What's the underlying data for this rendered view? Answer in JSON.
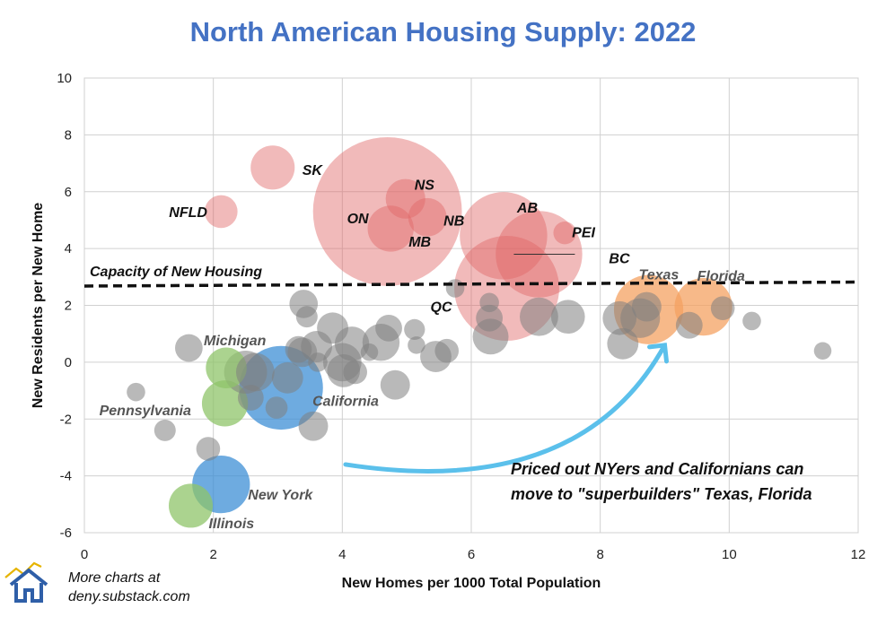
{
  "chart_data": {
    "type": "scatter",
    "title": "North American Housing Supply: 2022",
    "xlabel": "New Homes per 1000 Total Population",
    "ylabel": "New Residents per New Home",
    "xlim": [
      0,
      12
    ],
    "ylim": [
      -6,
      10
    ],
    "xticks": [
      0,
      2,
      4,
      6,
      8,
      10,
      12
    ],
    "yticks": [
      -6,
      -4,
      -2,
      0,
      2,
      4,
      6,
      8,
      10
    ],
    "grid": true,
    "colors": {
      "canada": "#e06666",
      "canada_alpha": 0.45,
      "gray": "#808080",
      "green": "#8fc46a",
      "blue": "#3d8fd6",
      "orange": "#f4a261",
      "arrow": "#5bc0eb",
      "title": "#4472c4"
    },
    "canada": [
      {
        "label": "ON",
        "x": 4.7,
        "y": 5.3,
        "size": 14.0
      },
      {
        "label": "QC",
        "x": 6.55,
        "y": 2.6,
        "size": 6.5
      },
      {
        "label": "AB",
        "x": 6.5,
        "y": 4.45,
        "size": 4.3
      },
      {
        "label": "BC",
        "x": 7.05,
        "y": 3.8,
        "size": 4.2
      },
      {
        "label": "SK",
        "x": 2.92,
        "y": 6.85,
        "size": 0.8
      },
      {
        "label": "NFLD",
        "x": 2.12,
        "y": 5.3,
        "size": 0.35
      },
      {
        "label": "NS",
        "x": 4.98,
        "y": 5.75,
        "size": 0.6
      },
      {
        "label": "NB",
        "x": 5.32,
        "y": 5.1,
        "size": 0.55
      },
      {
        "label": "MB",
        "x": 4.75,
        "y": 4.7,
        "size": 0.9
      },
      {
        "label": "PEI",
        "x": 7.45,
        "y": 4.55,
        "size": 0.1
      }
    ],
    "states_labeled": [
      {
        "label": "California",
        "x": 3.05,
        "y": -0.9,
        "size": 3.9,
        "group": "blue"
      },
      {
        "label": "New York",
        "x": 2.12,
        "y": -4.3,
        "size": 1.6,
        "group": "blue"
      },
      {
        "label": "Michigan",
        "x": 2.2,
        "y": -0.2,
        "size": 0.65,
        "group": "green"
      },
      {
        "label": "Pennsylvania",
        "x": 2.18,
        "y": -1.45,
        "size": 0.9,
        "group": "green"
      },
      {
        "label": "Illinois",
        "x": 1.65,
        "y": -5.05,
        "size": 0.8,
        "group": "green"
      },
      {
        "label": "Texas",
        "x": 8.75,
        "y": 1.85,
        "size": 2.5,
        "group": "orange"
      },
      {
        "label": "Florida",
        "x": 9.6,
        "y": 1.95,
        "size": 1.6,
        "group": "orange"
      }
    ],
    "states_other": [
      {
        "x": 0.8,
        "y": -1.05,
        "size": 0.04
      },
      {
        "x": 1.25,
        "y": -2.4,
        "size": 0.08
      },
      {
        "x": 1.62,
        "y": 0.5,
        "size": 0.2
      },
      {
        "x": 1.92,
        "y": -3.05,
        "size": 0.12
      },
      {
        "x": 2.5,
        "y": -0.35,
        "size": 0.75
      },
      {
        "x": 2.65,
        "y": -0.35,
        "size": 0.55
      },
      {
        "x": 2.58,
        "y": -1.25,
        "size": 0.16
      },
      {
        "x": 2.98,
        "y": -1.6,
        "size": 0.09
      },
      {
        "x": 3.15,
        "y": -0.55,
        "size": 0.3
      },
      {
        "x": 3.4,
        "y": 2.05,
        "size": 0.22
      },
      {
        "x": 3.45,
        "y": 1.6,
        "size": 0.08
      },
      {
        "x": 3.38,
        "y": 0.35,
        "size": 0.25
      },
      {
        "x": 3.55,
        "y": -2.25,
        "size": 0.25
      },
      {
        "x": 3.6,
        "y": 0.55,
        "size": 0.3
      },
      {
        "x": 3.62,
        "y": 0.0,
        "size": 0.05
      },
      {
        "x": 3.32,
        "y": 0.45,
        "size": 0.18
      },
      {
        "x": 3.85,
        "y": 1.2,
        "size": 0.3
      },
      {
        "x": 4.0,
        "y": 0.0,
        "size": 0.55
      },
      {
        "x": 4.02,
        "y": -0.3,
        "size": 0.35
      },
      {
        "x": 4.15,
        "y": 0.65,
        "size": 0.4
      },
      {
        "x": 4.2,
        "y": -0.35,
        "size": 0.12
      },
      {
        "x": 4.42,
        "y": 0.35,
        "size": 0.03
      },
      {
        "x": 4.6,
        "y": 0.7,
        "size": 0.5
      },
      {
        "x": 4.72,
        "y": 1.2,
        "size": 0.18
      },
      {
        "x": 4.82,
        "y": -0.8,
        "size": 0.25
      },
      {
        "x": 5.12,
        "y": 1.15,
        "size": 0.07
      },
      {
        "x": 5.15,
        "y": 0.6,
        "size": 0.03
      },
      {
        "x": 5.45,
        "y": 0.2,
        "size": 0.3
      },
      {
        "x": 5.62,
        "y": 0.4,
        "size": 0.12
      },
      {
        "x": 5.75,
        "y": 2.6,
        "size": 0.04
      },
      {
        "x": 6.28,
        "y": 2.1,
        "size": 0.05
      },
      {
        "x": 6.28,
        "y": 1.55,
        "size": 0.18
      },
      {
        "x": 6.3,
        "y": 0.9,
        "size": 0.45
      },
      {
        "x": 7.05,
        "y": 1.6,
        "size": 0.55
      },
      {
        "x": 7.5,
        "y": 1.6,
        "size": 0.38
      },
      {
        "x": 8.3,
        "y": 1.55,
        "size": 0.38
      },
      {
        "x": 8.35,
        "y": 0.65,
        "size": 0.3
      },
      {
        "x": 8.62,
        "y": 1.55,
        "size": 0.6
      },
      {
        "x": 8.72,
        "y": 1.95,
        "size": 0.25
      },
      {
        "x": 9.38,
        "y": 1.3,
        "size": 0.18
      },
      {
        "x": 9.9,
        "y": 1.9,
        "size": 0.12
      },
      {
        "x": 10.35,
        "y": 1.45,
        "size": 0.04
      },
      {
        "x": 11.45,
        "y": 0.4,
        "size": 0.03
      }
    ],
    "capacity_line": {
      "label": "Capacity of New Housing",
      "x": [
        0,
        12
      ],
      "y": [
        2.68,
        2.82
      ]
    },
    "annotation": {
      "lines": [
        "Priced out NYers and Californians can",
        "move to \"superbuilders\" Texas, Florida"
      ],
      "arrow_from": [
        4.05,
        -3.6
      ],
      "arrow_to": [
        9.0,
        0.6
      ]
    }
  },
  "footer": {
    "line1": "More charts at",
    "line2": "deny.substack.com",
    "logo": "house-chart-icon"
  }
}
